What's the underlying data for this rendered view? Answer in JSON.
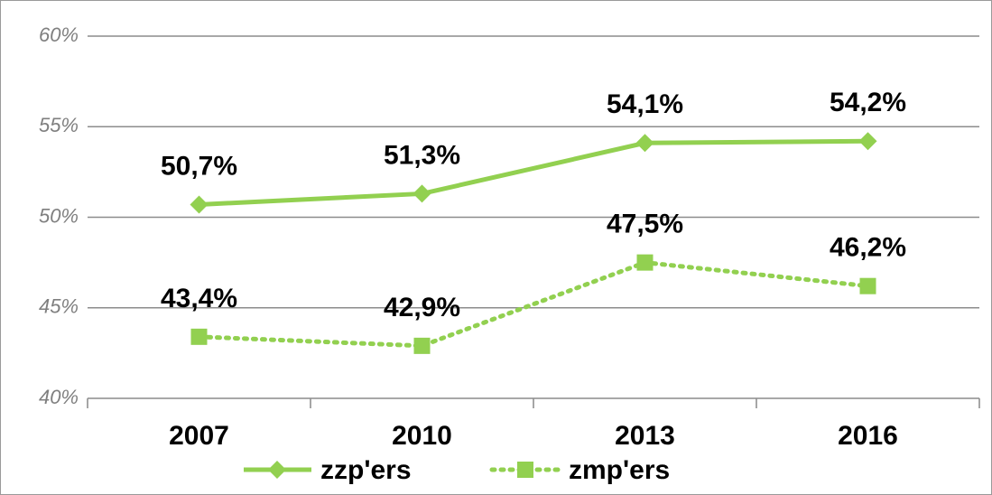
{
  "chart_data": {
    "type": "line",
    "categories": [
      "2007",
      "2010",
      "2013",
      "2016"
    ],
    "series": [
      {
        "name": "zzp'ers",
        "color": "#92d050",
        "style": "solid",
        "marker": "diamond",
        "values": [
          50.7,
          51.3,
          54.1,
          54.2
        ],
        "value_labels": [
          "50,7%",
          "51,3%",
          "54,1%",
          "54,2%"
        ]
      },
      {
        "name": "zmp'ers",
        "color": "#92d050",
        "style": "dotted",
        "marker": "square",
        "values": [
          43.4,
          42.9,
          47.5,
          46.2
        ],
        "value_labels": [
          "43,4%",
          "42,9%",
          "47,5%",
          "46,2%"
        ]
      }
    ],
    "ylim": [
      40,
      60
    ],
    "yticks": [
      {
        "value": 40,
        "label": "40%"
      },
      {
        "value": 45,
        "label": "45%"
      },
      {
        "value": 50,
        "label": "50%"
      },
      {
        "value": 55,
        "label": "55%"
      },
      {
        "value": 60,
        "label": "60%"
      }
    ],
    "grid": true,
    "legend": "bottom"
  }
}
